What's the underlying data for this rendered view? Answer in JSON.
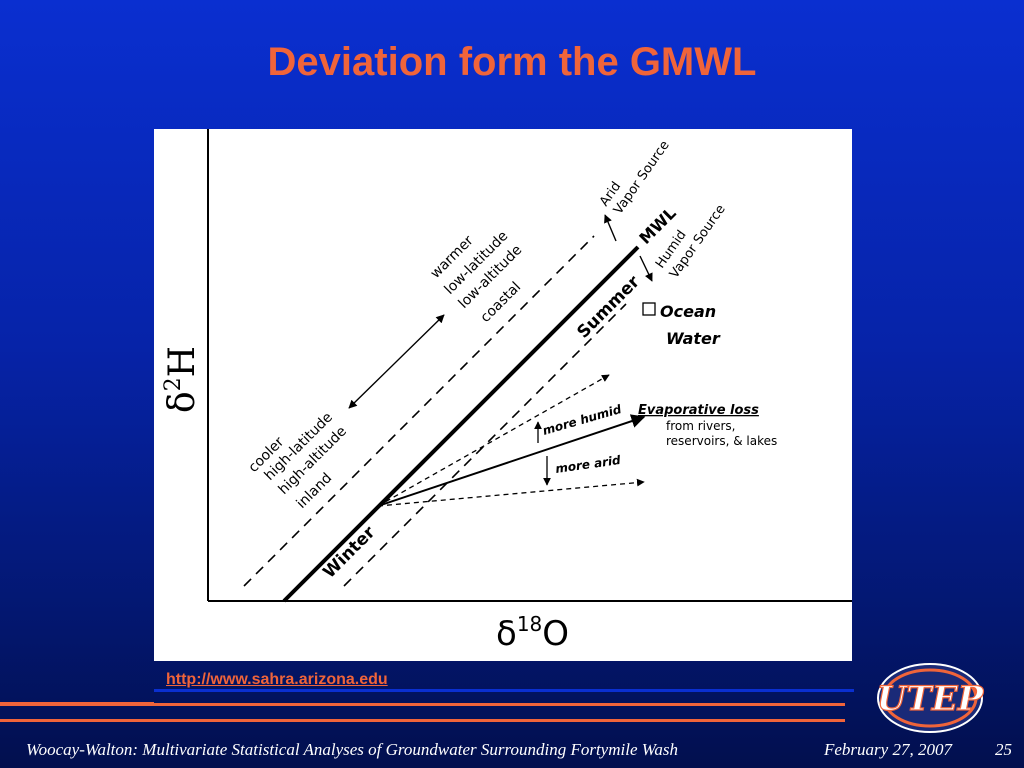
{
  "slide": {
    "title": "Deviation form the GMWL",
    "source_url": "http://www.sahra.arizona.edu",
    "footer_text": "Woocay-Walton: Multivariate Statistical Analyses of Groundwater Surrounding Fortymile Wash",
    "footer_date": "February 27, 2007",
    "page_number": "25",
    "accent_color": "#f0643a",
    "background_color": "#0a2fd0"
  },
  "diagram": {
    "y_axis_symbol": "δ",
    "y_axis_superscript": "2",
    "y_axis_element": "H",
    "x_axis_symbol": "δ",
    "x_axis_superscript": "18",
    "x_axis_element": "O",
    "line_label": "MWL",
    "summer_label": "Summer",
    "winter_label": "Winter",
    "upper_labels": [
      "warmer",
      "low-latitude",
      "low-altitude",
      "coastal"
    ],
    "lower_labels": [
      "cooler",
      "high-latitude",
      "high-altitude",
      "inland"
    ],
    "arid_labels": [
      "Arid",
      "Vapor Source"
    ],
    "humid_labels": [
      "Humid",
      "Vapor Source"
    ],
    "ocean_labels": [
      "Ocean",
      "Water"
    ],
    "evap_title": "Evaporative loss",
    "evap_details": [
      "from rivers,",
      "reservoirs,  &  lakes"
    ],
    "more_humid": "more humid",
    "more_arid": "more arid"
  },
  "logo": {
    "text": "UTEP",
    "icon": "utep-logo"
  }
}
